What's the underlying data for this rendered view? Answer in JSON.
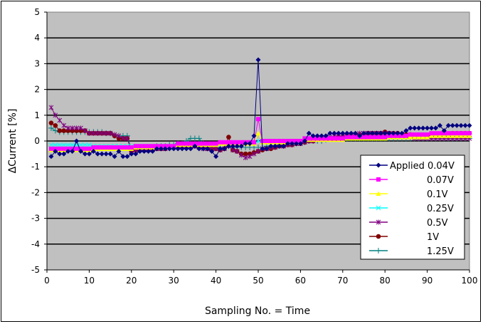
{
  "chart_data": {
    "type": "line",
    "title": "",
    "xlabel": "Sampling No. = Time",
    "ylabel": "ΔCurrent [%]",
    "xlim": [
      0,
      100
    ],
    "ylim": [
      -5,
      5
    ],
    "xticks": [
      "0",
      "10",
      "20",
      "30",
      "40",
      "50",
      "60",
      "70",
      "80",
      "90",
      "100"
    ],
    "yticks": [
      "5",
      "4",
      "3",
      "2",
      "1",
      "0",
      "-1",
      "-2",
      "-3",
      "-4",
      "-5"
    ],
    "grid": "horizontal",
    "legend_position": "bottom-right",
    "series": [
      {
        "name": "Applied 0.04V",
        "color": "#000080",
        "marker": "diamond",
        "values": [
          -0.6,
          -0.4,
          -0.5,
          -0.5,
          -0.4,
          -0.4,
          0,
          -0.4,
          -0.5,
          -0.5,
          -0.4,
          -0.5,
          -0.5,
          -0.5,
          -0.5,
          -0.6,
          -0.4,
          -0.6,
          -0.6,
          -0.5,
          -0.5,
          -0.4,
          -0.4,
          -0.4,
          -0.4,
          -0.3,
          -0.3,
          -0.3,
          -0.3,
          -0.3,
          -0.3,
          -0.3,
          -0.3,
          -0.3,
          -0.2,
          -0.3,
          -0.3,
          -0.3,
          -0.4,
          -0.6,
          -0.3,
          -0.3,
          -0.2,
          -0.2,
          -0.2,
          -0.2,
          -0.1,
          -0.1,
          0.2,
          3.15,
          -0.3,
          -0.3,
          -0.2,
          -0.2,
          -0.2,
          -0.2,
          -0.1,
          -0.1,
          -0.1,
          -0.1,
          0,
          0.3,
          0.2,
          0.2,
          0.2,
          0.2,
          0.3,
          0.3,
          0.3,
          0.3,
          0.3,
          0.3,
          0.3,
          0.2,
          0.3,
          0.3,
          0.3,
          0.3,
          0.3,
          0.3,
          0.3,
          0.3,
          0.3,
          0.3,
          0.4,
          0.5,
          0.5,
          0.5,
          0.5,
          0.5,
          0.5,
          0.5,
          0.6,
          0.4,
          0.6,
          0.6,
          0.6,
          0.6,
          0.6,
          0.6
        ]
      },
      {
        "name": "0.07V",
        "color": "#ff00ff",
        "marker": "square",
        "values": [
          -0.3,
          -0.3,
          -0.3,
          -0.3,
          -0.3,
          -0.3,
          -0.3,
          -0.3,
          -0.3,
          -0.3,
          -0.25,
          -0.25,
          -0.25,
          -0.25,
          -0.25,
          -0.25,
          -0.25,
          -0.25,
          -0.25,
          -0.25,
          -0.2,
          -0.2,
          -0.2,
          -0.2,
          -0.2,
          -0.2,
          -0.2,
          -0.2,
          -0.2,
          -0.2,
          -0.1,
          -0.1,
          -0.1,
          -0.1,
          -0.1,
          -0.1,
          -0.1,
          -0.1,
          -0.1,
          -0.1,
          -0.05,
          -0.05,
          -0.05,
          -0.05,
          -0.05,
          -0.05,
          -0.05,
          -0.05,
          -0.05,
          0.85,
          0,
          0,
          0,
          0,
          0,
          0,
          0,
          0,
          0,
          0,
          0.1,
          0.1,
          0.1,
          0.1,
          0.1,
          0.1,
          0.1,
          0.1,
          0.1,
          0.1,
          0.15,
          0.15,
          0.15,
          0.15,
          0.15,
          0.15,
          0.15,
          0.15,
          0.15,
          0.15,
          0.2,
          0.2,
          0.2,
          0.2,
          0.2,
          0.25,
          0.25,
          0.25,
          0.25,
          0.25,
          0.3,
          0.3,
          0.3,
          0.3,
          0.3,
          0.3,
          0.3,
          0.3,
          0.3,
          0.3
        ]
      },
      {
        "name": "0.1V",
        "color": "#ffff00",
        "marker": "triangle",
        "values": [
          -0.35,
          -0.35,
          -0.35,
          -0.35,
          -0.35,
          -0.35,
          -0.35,
          -0.35,
          -0.35,
          -0.35,
          -0.3,
          -0.3,
          -0.3,
          -0.3,
          -0.3,
          -0.3,
          -0.3,
          -0.3,
          -0.3,
          -0.3,
          -0.25,
          -0.25,
          -0.25,
          -0.25,
          -0.25,
          -0.25,
          -0.25,
          -0.25,
          -0.25,
          -0.25,
          -0.15,
          -0.15,
          -0.15,
          -0.15,
          -0.15,
          -0.15,
          -0.15,
          -0.15,
          -0.15,
          -0.15,
          -0.1,
          -0.1,
          -0.1,
          -0.1,
          -0.1,
          -0.1,
          -0.1,
          -0.1,
          -0.1,
          0.3,
          -0.05,
          -0.05,
          -0.05,
          -0.05,
          -0.05,
          -0.05,
          -0.05,
          -0.05,
          -0.05,
          -0.05,
          0.05,
          0.05,
          0.05,
          0.05,
          0.05,
          0.05,
          0.05,
          0.05,
          0.05,
          0.05,
          0.1,
          0.1,
          0.1,
          0.1,
          0.1,
          0.1,
          0.1,
          0.1,
          0.1,
          0.1,
          0.15,
          0.15,
          0.15,
          0.15,
          0.15,
          0.15,
          0.15,
          0.15,
          0.15,
          0.15,
          0.2,
          0.2,
          0.2,
          0.2,
          0.2,
          0.2,
          0.2,
          0.2,
          0.2,
          0.2
        ]
      },
      {
        "name": "0.25V",
        "color": "#00ffff",
        "marker": "x",
        "values": [
          -0.15,
          -0.15,
          -0.15,
          -0.15,
          -0.15,
          -0.15,
          -0.15,
          -0.15,
          -0.15,
          -0.15,
          -0.2,
          -0.2,
          -0.2,
          -0.2,
          -0.2,
          -0.2,
          -0.2,
          -0.2,
          -0.2,
          -0.2,
          -0.2,
          -0.2,
          -0.2,
          -0.2,
          -0.2,
          -0.2,
          -0.2,
          -0.2,
          -0.2,
          -0.2,
          -0.15,
          -0.15,
          -0.15,
          -0.15,
          -0.15,
          -0.15,
          -0.15,
          -0.15,
          -0.15,
          -0.15,
          -0.1,
          -0.1,
          -0.1,
          -0.1,
          -0.1,
          -0.1,
          -0.1,
          -0.1,
          -0.1,
          0,
          -0.05,
          -0.05,
          -0.05,
          -0.05,
          -0.05,
          -0.05,
          -0.05,
          -0.05,
          -0.05,
          -0.05,
          0.05,
          0.05,
          0.05,
          0.05,
          0.05,
          0.05,
          0.05,
          0.05,
          0.05,
          0.05,
          0.1,
          0.1,
          0.1,
          0.1,
          0.1,
          0.1,
          0.1,
          0.1,
          0.1,
          0.1,
          0.15,
          0.15,
          0.15,
          0.15,
          0.15,
          0.15,
          0.15,
          0.15,
          0.15,
          0.15,
          0.2,
          0.2,
          0.2,
          0.2,
          0.2,
          0.2,
          0.2,
          0.2,
          0.2,
          0.2
        ]
      },
      {
        "name": "0.5V",
        "color": "#800080",
        "marker": "star",
        "values": [
          1.3,
          1.0,
          0.8,
          0.6,
          0.5,
          0.5,
          0.5,
          0.5,
          0.4,
          0.3,
          0.3,
          0.3,
          0.3,
          0.3,
          0.3,
          0.25,
          0.2,
          0.1,
          0.1,
          -0.4,
          -0.35,
          -0.35,
          -0.35,
          -0.35,
          -0.3,
          -0.3,
          -0.3,
          -0.3,
          -0.25,
          -0.25,
          -0.25,
          -0.2,
          -0.2,
          -0.2,
          -0.2,
          -0.25,
          -0.3,
          -0.3,
          -0.3,
          -0.3,
          -0.35,
          -0.3,
          -0.2,
          -0.35,
          -0.4,
          -0.55,
          -0.65,
          -0.6,
          -0.5,
          -0.4,
          -0.3,
          -0.3,
          -0.25,
          -0.25,
          -0.2,
          -0.2,
          -0.15,
          -0.15,
          -0.1,
          -0.1,
          -0.05,
          0,
          0,
          0.05,
          0.1,
          0.1,
          0.15,
          0.2,
          0.2,
          0.2,
          0.2,
          0.25,
          0.25,
          0.3,
          0.3,
          0.3,
          0.3,
          0.3,
          0.3,
          0.3,
          0.3,
          0.25,
          0.25,
          0.2,
          0.2,
          0.15,
          0.1,
          0.1,
          0.1,
          0.1,
          0.1,
          0.1,
          0.1,
          0.1,
          0.1,
          0.1,
          0.1,
          0.1,
          0.1,
          0.1
        ]
      },
      {
        "name": "1V",
        "color": "#800000",
        "marker": "circle",
        "values": [
          0.7,
          0.6,
          0.4,
          0.4,
          0.4,
          0.4,
          0.4,
          0.4,
          0.4,
          0.3,
          0.3,
          0.3,
          0.3,
          0.3,
          0.3,
          0.2,
          0.1,
          0.1,
          0.1,
          -0.4,
          -0.35,
          -0.35,
          -0.35,
          -0.35,
          -0.3,
          -0.3,
          -0.3,
          -0.3,
          -0.25,
          -0.25,
          -0.25,
          -0.25,
          -0.2,
          -0.2,
          -0.2,
          -0.25,
          -0.25,
          -0.3,
          -0.3,
          -0.3,
          -0.35,
          -0.3,
          0.15,
          -0.35,
          -0.4,
          -0.5,
          -0.5,
          -0.5,
          -0.45,
          -0.4,
          -0.35,
          -0.3,
          -0.3,
          -0.25,
          -0.2,
          -0.2,
          -0.15,
          -0.15,
          -0.1,
          -0.1,
          -0.05,
          0,
          0,
          0.05,
          0.05,
          0.1,
          0.1,
          0.1,
          0.15,
          0.15,
          0.2,
          0.2,
          0.2,
          0.25,
          0.25,
          0.3,
          0.3,
          0.3,
          0.3,
          0.35,
          0.3,
          0.3,
          0.3,
          0.25,
          0.25,
          0.25,
          0.2,
          0.2,
          0.2,
          0.2,
          0.2,
          0.2,
          0.25,
          0.25,
          0.25,
          0.3,
          0.3,
          0.3,
          0.3,
          0.3
        ]
      },
      {
        "name": "1.25V",
        "color": "#008080",
        "marker": "plus",
        "values": [
          0.5,
          0.4,
          0.35,
          0.35,
          0.35,
          0.35,
          0.35,
          0.35,
          0.35,
          0.35,
          0.35,
          0.35,
          0.35,
          0.3,
          0.3,
          0.2,
          0.2,
          0.2,
          0.2,
          -0.3,
          -0.3,
          -0.3,
          -0.25,
          -0.25,
          -0.25,
          -0.2,
          -0.2,
          -0.2,
          -0.15,
          -0.15,
          -0.1,
          -0.1,
          0,
          0.1,
          0.1,
          0.1,
          -0.1,
          -0.2,
          -0.25,
          -0.25,
          -0.25,
          -0.25,
          -0.2,
          -0.25,
          -0.25,
          -0.25,
          -0.25,
          -0.25,
          -0.25,
          -0.25,
          -0.25,
          -0.2,
          -0.2,
          -0.2,
          -0.15,
          -0.15,
          -0.1,
          -0.1,
          -0.1,
          -0.05,
          -0.05,
          0,
          0,
          0,
          0,
          0.05,
          0.1,
          0.1,
          0.1,
          0.1,
          0.1,
          0.1,
          0.1,
          0.1,
          0.1,
          0.1,
          0.1,
          0.1,
          0.1,
          0.1,
          0.1,
          0.1,
          0.1,
          0.1,
          0.1,
          0.1,
          0.1,
          0.1,
          0.1,
          0.1,
          0.1,
          0.1,
          0.1,
          0.1,
          0.1,
          0.1,
          0.1,
          0.1,
          0.1,
          0.1
        ]
      }
    ]
  }
}
